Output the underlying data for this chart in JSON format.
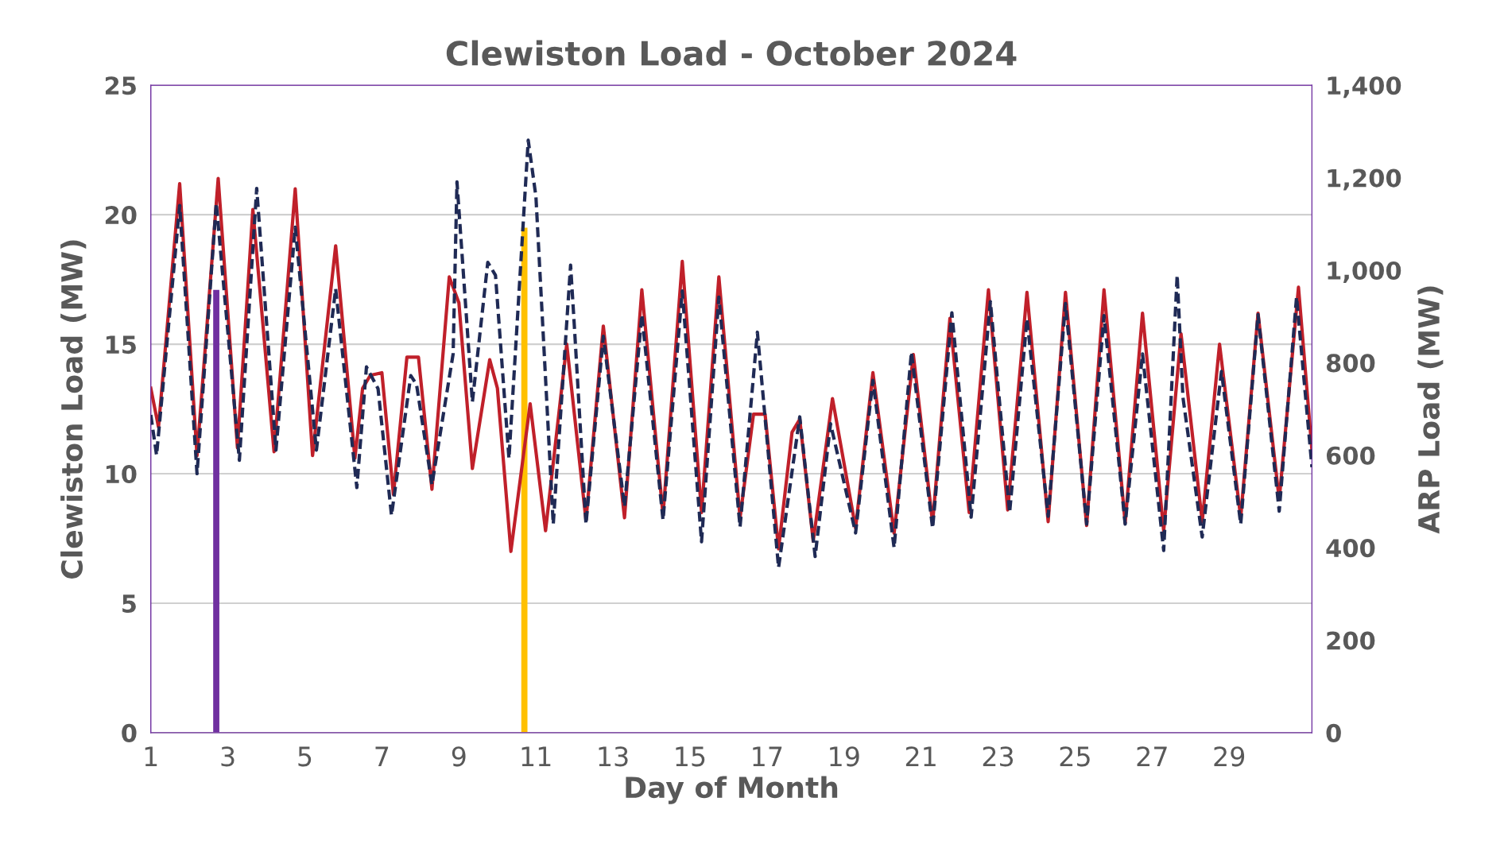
{
  "chart_data": {
    "type": "line",
    "title": "Clewiston Load - October 2024",
    "xlabel": "Day of Month",
    "ylabel": "Clewiston Load (MW)",
    "y2label": "ARP Load (MW)",
    "xlim": [
      1,
      31.15
    ],
    "xticks": [
      1,
      3,
      5,
      7,
      9,
      11,
      13,
      15,
      17,
      19,
      21,
      23,
      25,
      27,
      29
    ],
    "ylim": [
      0,
      25
    ],
    "yticks": [
      0,
      5,
      10,
      15,
      20,
      25
    ],
    "y2lim": [
      0,
      1400
    ],
    "y2ticks": [
      0,
      200,
      400,
      600,
      800,
      {
        "value": 1000,
        "label": "1,000"
      },
      {
        "value": 1200,
        "label": "1,200"
      },
      {
        "value": 1400,
        "label": "1,400"
      }
    ],
    "grid": "y",
    "marker": "none",
    "series": [
      {
        "color": "#1f2a55",
        "axis": "y2",
        "line_style": "dashed",
        "x": [
          1.0,
          1.15,
          1.75,
          2.2,
          2.7,
          3.3,
          3.75,
          4.25,
          4.75,
          5.3,
          5.8,
          6.35,
          6.6,
          6.9,
          7.25,
          7.75,
          7.9,
          8.3,
          8.85,
          8.95,
          9.35,
          9.75,
          9.95,
          10.3,
          10.8,
          11.0,
          11.45,
          11.9,
          12.0,
          12.3,
          12.75,
          13.3,
          13.75,
          14.3,
          14.8,
          15.3,
          15.75,
          16.3,
          16.75,
          17.3,
          17.85,
          18.25,
          18.65,
          19.3,
          19.75,
          20.3,
          20.75,
          21.3,
          21.8,
          22.3,
          22.8,
          23.3,
          23.75,
          24.3,
          24.75,
          25.3,
          25.75,
          26.3,
          26.75,
          27.3,
          27.65,
          27.8,
          28.3,
          28.8,
          29.3,
          29.75,
          30.3,
          30.75,
          31.15
        ],
        "values": [
          687,
          600,
          1140,
          560,
          1145,
          589,
          1177,
          611,
          1093,
          611,
          960,
          530,
          791,
          744,
          470,
          772,
          753,
          536,
          819,
          1191,
          715,
          1017,
          989,
          593,
          1281,
          1159,
          451,
          1011,
          876,
          451,
          857,
          489,
          904,
          460,
          955,
          413,
          942,
          445,
          866,
          357,
          683,
          381,
          668,
          432,
          762,
          400,
          823,
          442,
          908,
          466,
          932,
          476,
          895,
          468,
          928,
          451,
          902,
          451,
          819,
          394,
          989,
          725,
          423,
          781,
          451,
          904,
          479,
          942,
          574
        ]
      },
      {
        "color": "#c0202a",
        "axis": "y",
        "line_style": "solid",
        "x": [
          1.0,
          1.2,
          1.75,
          2.2,
          2.75,
          3.25,
          3.65,
          4.2,
          4.75,
          5.2,
          5.8,
          6.3,
          6.5,
          6.7,
          7.0,
          7.3,
          7.65,
          7.95,
          8.3,
          8.75,
          9.0,
          9.35,
          9.8,
          10.0,
          10.35,
          10.85,
          11.25,
          11.8,
          12.3,
          12.75,
          13.3,
          13.75,
          14.3,
          14.8,
          15.3,
          15.75,
          16.3,
          16.65,
          16.95,
          17.3,
          17.65,
          17.85,
          18.2,
          18.7,
          19.3,
          19.75,
          20.3,
          20.8,
          21.3,
          21.75,
          22.25,
          22.75,
          23.25,
          23.75,
          24.3,
          24.75,
          25.3,
          25.75,
          26.3,
          26.75,
          27.3,
          27.75,
          28.3,
          28.75,
          29.3,
          29.75,
          30.3,
          30.8,
          31.15
        ],
        "values": [
          13.3,
          11.8,
          21.2,
          10.7,
          21.4,
          11.0,
          20.2,
          10.85,
          21.0,
          10.7,
          18.8,
          10.6,
          13.3,
          13.8,
          13.9,
          9.2,
          14.5,
          14.5,
          9.4,
          17.6,
          16.6,
          10.2,
          14.4,
          13.3,
          7.0,
          12.7,
          7.8,
          15.0,
          8.2,
          15.7,
          8.3,
          17.1,
          8.4,
          18.2,
          8.5,
          17.6,
          8.3,
          12.3,
          12.3,
          7.1,
          11.6,
          12.1,
          7.4,
          12.9,
          7.9,
          13.9,
          7.7,
          14.6,
          8.1,
          16.0,
          8.5,
          17.1,
          8.6,
          17.0,
          8.15,
          17.0,
          8.0,
          17.1,
          8.1,
          16.2,
          7.8,
          15.4,
          8.15,
          15.0,
          8.3,
          16.2,
          9.0,
          17.2,
          10.9
        ]
      },
      {
        "type": "bar",
        "color": "#7030a0",
        "axis": "y",
        "x": [
          2.7
        ],
        "values": [
          17.1
        ]
      },
      {
        "type": "bar",
        "color": "#ffc000",
        "axis": "y",
        "x": [
          10.7
        ],
        "values": [
          19.5
        ]
      }
    ]
  }
}
